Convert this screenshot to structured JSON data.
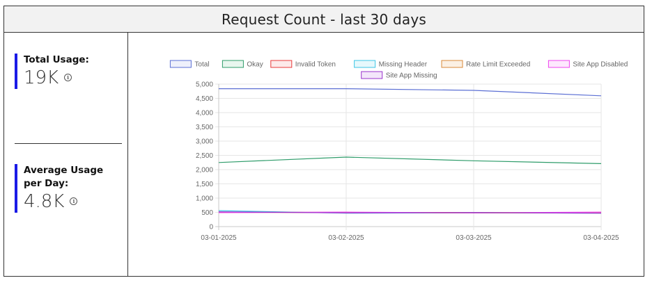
{
  "title": "Request Count - last 30 days",
  "stats": [
    {
      "label": "Total Usage:",
      "value": "19K",
      "info": "i"
    },
    {
      "label": "Average Usage per Day:",
      "value": "4.8K",
      "info": "i"
    }
  ],
  "chart_data": {
    "type": "line",
    "x": [
      "03-01-2025",
      "03-02-2025",
      "03-03-2025",
      "03-04-2025"
    ],
    "ylim": [
      0,
      5000
    ],
    "yticks": [
      0,
      500,
      1000,
      1500,
      2000,
      2500,
      3000,
      3500,
      4000,
      4500,
      5000
    ],
    "ytick_labels": [
      "0",
      "500",
      "1,000",
      "1,500",
      "2,000",
      "2,500",
      "3,000",
      "3,500",
      "4,000",
      "4,500",
      "5,000"
    ],
    "grid": true,
    "legend_position": "top",
    "series": [
      {
        "name": "Total",
        "color": "#5b6fd4",
        "fill": "#eef0fb",
        "values": [
          4840,
          4840,
          4780,
          4590
        ]
      },
      {
        "name": "Okay",
        "color": "#2e9c6a",
        "fill": "#e8f6ee",
        "values": [
          2250,
          2440,
          2310,
          2210
        ]
      },
      {
        "name": "Invalid Token",
        "color": "#e83a3a",
        "fill": "#fdeaea",
        "values": [
          510,
          490,
          495,
          480
        ]
      },
      {
        "name": "Missing Header",
        "color": "#3ec6e6",
        "fill": "#e6f8fc",
        "values": [
          560,
          470,
          490,
          470
        ]
      },
      {
        "name": "Rate Limit Exceeded",
        "color": "#d98a3a",
        "fill": "#fbf0e4",
        "values": [
          500,
          500,
          480,
          480
        ]
      },
      {
        "name": "Site App Disabled",
        "color": "#ee44ee",
        "fill": "#fde8fd",
        "values": [
          490,
          510,
          480,
          510
        ]
      },
      {
        "name": "Site App Missing",
        "color": "#9a33cc",
        "fill": "#f3e6fa",
        "values": [
          520,
          480,
          490,
          470
        ]
      }
    ]
  }
}
